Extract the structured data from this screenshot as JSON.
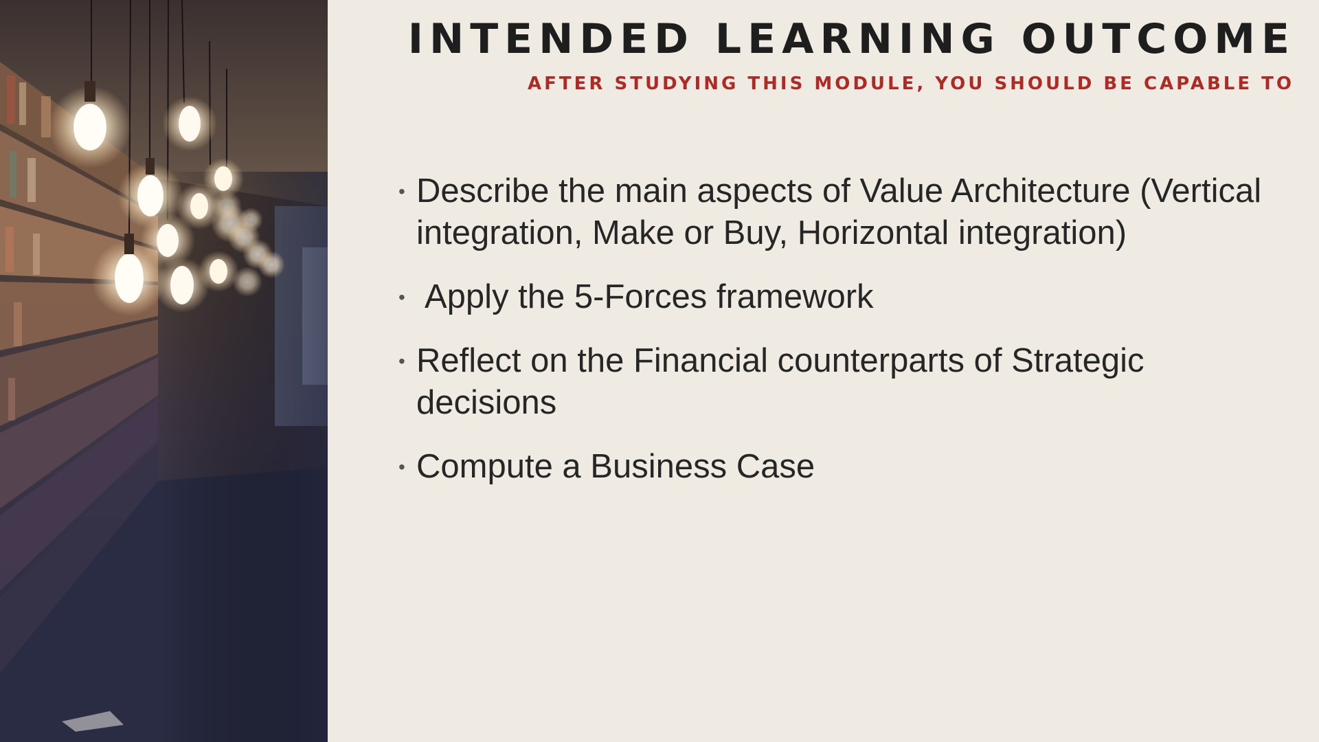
{
  "slide": {
    "title": "INTENDED LEARNING OUTCOME",
    "subtitle": "AFTER STUDYING THIS MODULE, YOU SHOULD BE CAPABLE TO",
    "photo": "library-with-hanging-light-bulbs",
    "outcomes": [
      {
        "text": "Describe the main aspects of Value Architecture (Vertical integration, Make or Buy, Horizontal integration)"
      },
      {
        "text": "Apply the 5-Forces framework"
      },
      {
        "text": "Reflect on the Financial counterparts of Strategic decisions"
      },
      {
        "text": "Compute a Business Case"
      }
    ]
  },
  "colors": {
    "background": "#efebe3",
    "title": "#1e1e1e",
    "subtitle": "#b02a25",
    "body_text": "#262626"
  }
}
